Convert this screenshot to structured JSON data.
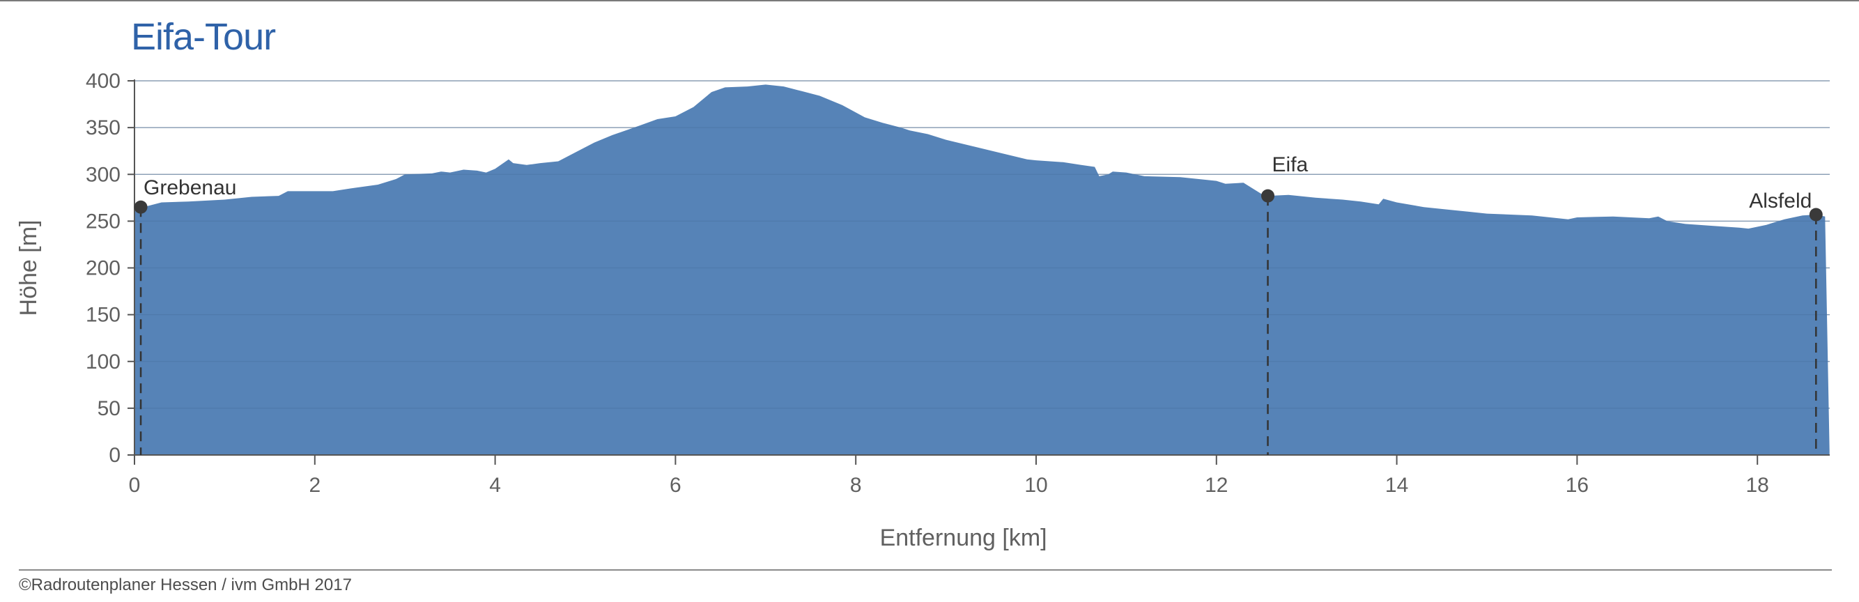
{
  "title": "Eifa-Tour",
  "copyright": "©Radroutenplaner Hessen / ivm GmbH 2017",
  "colors": {
    "area": "#5683b7",
    "title": "#2f62a8",
    "grid": "#c8c8c8",
    "marker": "#3a3a3a"
  },
  "chart_data": {
    "type": "area",
    "title": "Eifa-Tour",
    "xlabel": "Entfernung [km]",
    "ylabel": "Höhe [m]",
    "xlim": [
      0,
      18.85
    ],
    "ylim": [
      0,
      400
    ],
    "xticks": [
      0,
      2,
      4,
      6,
      8,
      10,
      12,
      14,
      16,
      18
    ],
    "yticks": [
      0,
      50,
      100,
      150,
      200,
      250,
      300,
      350,
      400
    ],
    "grid": true,
    "series": [
      {
        "x": [
          0.0,
          0.1,
          0.3,
          0.6,
          1.0,
          1.3,
          1.6,
          1.7,
          2.0,
          2.2,
          2.4,
          2.7,
          2.9,
          3.0,
          3.3,
          3.4,
          3.5,
          3.65,
          3.8,
          3.9,
          4.0,
          4.15,
          4.2,
          4.35,
          4.5,
          4.7,
          4.9,
          5.1,
          5.3,
          5.6,
          5.8,
          6.0,
          6.2,
          6.4,
          6.55,
          6.8,
          7.0,
          7.2,
          7.4,
          7.6,
          7.85,
          8.1,
          8.3,
          8.5,
          8.6,
          8.8,
          9.0,
          9.3,
          9.6,
          9.9,
          10.0,
          10.3,
          10.5,
          10.65,
          10.7,
          10.8,
          10.85,
          11.0,
          11.2,
          11.6,
          12.0,
          12.1,
          12.3,
          12.4,
          12.5,
          12.57,
          12.8,
          13.1,
          13.4,
          13.6,
          13.8,
          13.85,
          14.0,
          14.3,
          14.6,
          14.8,
          15.0,
          15.5,
          15.9,
          16.0,
          16.4,
          16.8,
          16.9,
          17.0,
          17.2,
          17.5,
          17.8,
          17.9,
          18.1,
          18.3,
          18.5,
          18.65,
          18.75,
          18.8
        ],
        "values": [
          265,
          265,
          270,
          271,
          273,
          276,
          277,
          282,
          282,
          282,
          285,
          289,
          295,
          300,
          301,
          303,
          302,
          305,
          304,
          302,
          306,
          316,
          312,
          310,
          312,
          314,
          324,
          334,
          342,
          352,
          359,
          362,
          372,
          388,
          393,
          394,
          396,
          394,
          389,
          384,
          374,
          361,
          355,
          350,
          347,
          343,
          337,
          330,
          323,
          316,
          315,
          313,
          310,
          308,
          298,
          300,
          303,
          302,
          298,
          297,
          293,
          290,
          291,
          285,
          279,
          277,
          278,
          275,
          273,
          271,
          268,
          274,
          270,
          265,
          262,
          260,
          258,
          256,
          252,
          254,
          255,
          253,
          255,
          250,
          247,
          245,
          243,
          242,
          246,
          252,
          256,
          257,
          255,
          5
        ]
      }
    ],
    "markers": [
      {
        "label": "Grebenau",
        "x": 0.07,
        "y": 265
      },
      {
        "label": "Eifa",
        "x": 12.57,
        "y": 277
      },
      {
        "label": "Alsfeld",
        "x": 18.65,
        "y": 257
      }
    ]
  }
}
